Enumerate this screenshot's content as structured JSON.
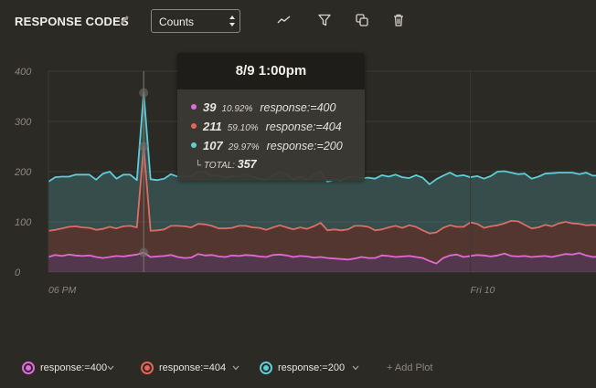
{
  "header": {
    "title": "RESPONSE CODES",
    "select_value": "Counts"
  },
  "chart_data": {
    "type": "area",
    "stacked": true,
    "ylim": [
      0,
      400
    ],
    "yticks": [
      "400",
      "300",
      "200",
      "100",
      "0"
    ],
    "xticks": [
      "06 PM",
      "Fri 10"
    ],
    "grid": true,
    "series": [
      {
        "name": "response:=400",
        "color": "#e06be0",
        "values": [
          30,
          34,
          32,
          35,
          33,
          32,
          33,
          30,
          28,
          30,
          32,
          31,
          33,
          35,
          39,
          30,
          31,
          32,
          34,
          30,
          28,
          29,
          36,
          33,
          34,
          31,
          30,
          33,
          32,
          34,
          33,
          31,
          30,
          34,
          35,
          33,
          30,
          32,
          31,
          29,
          30,
          28,
          27,
          26,
          25,
          27,
          30,
          28,
          28,
          33,
          32,
          30,
          31,
          32,
          30,
          28,
          22,
          17,
          28,
          33,
          35,
          30,
          32,
          34,
          33,
          31,
          33,
          37,
          32,
          31,
          32,
          30,
          31,
          32,
          30,
          33,
          36,
          35,
          38,
          33,
          30,
          31
        ]
      },
      {
        "name": "response:=404",
        "color": "#e5645a",
        "values": [
          52,
          50,
          55,
          55,
          58,
          57,
          55,
          54,
          58,
          60,
          55,
          60,
          59,
          54,
          211,
          52,
          52,
          53,
          58,
          62,
          63,
          60,
          60,
          62,
          58,
          56,
          57,
          55,
          60,
          58,
          56,
          57,
          54,
          55,
          58,
          56,
          55,
          57,
          55,
          62,
          68,
          55,
          58,
          57,
          60,
          65,
          62,
          62,
          55,
          52,
          57,
          62,
          57,
          61,
          60,
          55,
          55,
          62,
          60,
          60,
          55,
          60,
          67,
          62,
          55,
          60,
          60,
          60,
          70,
          70,
          62,
          57,
          58,
          62,
          61,
          64,
          64,
          62,
          58,
          60,
          64,
          61
        ]
      },
      {
        "name": "response:=200",
        "color": "#5ecdd8",
        "values": [
          98,
          105,
          103,
          100,
          103,
          105,
          106,
          100,
          110,
          110,
          99,
          103,
          102,
          94,
          107,
          103,
          100,
          101,
          103,
          98,
          99,
          102,
          104,
          104,
          99,
          106,
          101,
          103,
          98,
          104,
          101,
          98,
          100,
          104,
          106,
          105,
          99,
          101,
          98,
          103,
          102,
          97,
          99,
          100,
          104,
          98,
          95,
          98,
          103,
          108,
          101,
          102,
          101,
          94,
          103,
          105,
          98,
          106,
          104,
          105,
          101,
          103,
          90,
          95,
          98,
          100,
          107,
          104,
          96,
          94,
          102,
          99,
          101,
          102,
          106,
          101,
          98,
          101,
          99,
          105,
          98,
          100
        ]
      }
    ],
    "tooltip": {
      "title": "8/9 1:00pm",
      "rows": [
        {
          "count": "39",
          "pct": "10.92%",
          "name": "response:=400",
          "color": "#e06be0"
        },
        {
          "count": "211",
          "pct": "59.10%",
          "name": "response:=404",
          "color": "#e5645a"
        },
        {
          "count": "107",
          "pct": "29.97%",
          "name": "response:=200",
          "color": "#5ecdd8"
        }
      ],
      "total_label": "TOTAL:",
      "total": "357",
      "index": 14
    }
  },
  "legend": {
    "items": [
      {
        "label": "response:=400",
        "color": "#e06be0"
      },
      {
        "label": "response:=404",
        "color": "#e5645a"
      },
      {
        "label": "response:=200",
        "color": "#5ecdd8"
      }
    ],
    "add_plot": "+ Add Plot"
  }
}
